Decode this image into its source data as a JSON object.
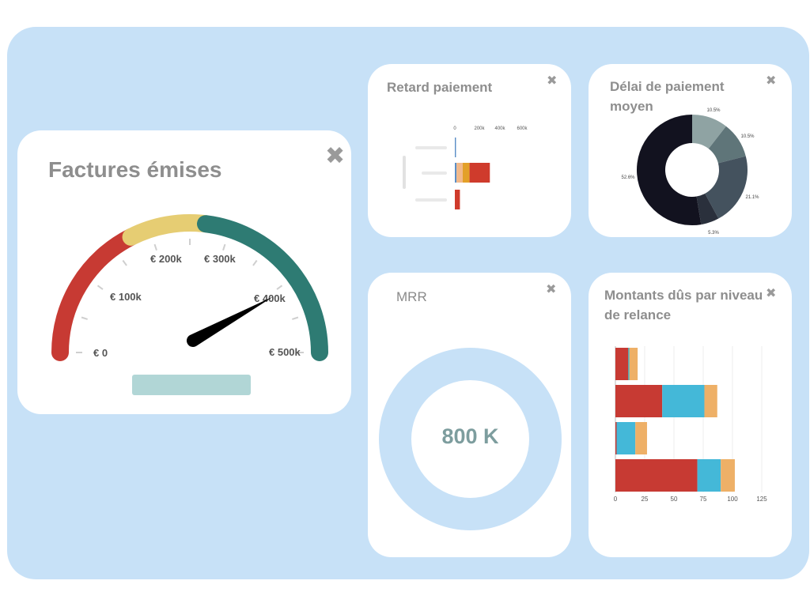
{
  "colors": {
    "board": "#c7e1f7",
    "card": "#ffffff",
    "title": "#8e8e8e",
    "gauge_red": "#c73a33",
    "gauge_yellow": "#e6cd73",
    "gauge_teal": "#2e7b73",
    "mrr_ring": "#c7e1f7",
    "mrr_value": "#7d9d9e"
  },
  "factures": {
    "title": "Factures émises",
    "close_icon": "close-icon",
    "gauge_labels": [
      "€ 0",
      "€ 100k",
      "€ 200k",
      "€ 300k",
      "€ 400k",
      "€ 500k"
    ],
    "gauge_min": 0,
    "gauge_max": 500,
    "needle_value": 420
  },
  "retard": {
    "title": "Retard paiement",
    "close_icon": "close-icon"
  },
  "delai": {
    "title_line1": "Délai de paiement",
    "title_line2": "moyen",
    "close_icon": "close-icon"
  },
  "mrr": {
    "title": "MRR",
    "value": "800 K",
    "close_icon": "close-icon"
  },
  "montants": {
    "title_line1": "Montants dûs par niveau",
    "title_line2": "de relance",
    "close_icon": "close-icon"
  },
  "chart_data": [
    {
      "type": "bar",
      "orientation": "horizontal",
      "stacked": true,
      "x_ticks": [
        "0",
        "200k",
        "400k",
        "600k"
      ],
      "xlim": [
        0,
        700
      ],
      "series_colors": [
        "#5b8ec6",
        "#f2b98a",
        "#e3a028",
        "#cf3b2c"
      ],
      "rows": [
        [
          10,
          0,
          0,
          0
        ],
        [
          15,
          55,
          60,
          180
        ],
        [
          0,
          0,
          0,
          45
        ]
      ]
    },
    {
      "type": "pie",
      "donut": true,
      "labels": [
        "10.5%",
        "10.5%",
        "21.1%",
        "5.3%",
        "52.6%"
      ],
      "values": [
        10.5,
        10.5,
        21.1,
        5.3,
        52.6
      ],
      "colors": [
        "#8fa3a3",
        "#5f7579",
        "#44525e",
        "#2a303c",
        "#12121f"
      ]
    },
    {
      "type": "bar",
      "orientation": "horizontal",
      "stacked": true,
      "x_ticks": [
        "0",
        "25",
        "50",
        "75",
        "100",
        "125"
      ],
      "xlim": [
        0,
        125
      ],
      "grid": true,
      "series_colors": [
        "#c73a33",
        "#39aab5",
        "#44b8d8",
        "#eeb067"
      ],
      "rows": [
        [
          11,
          1,
          0,
          7
        ],
        [
          40,
          0,
          36,
          11
        ],
        [
          1,
          0,
          16,
          10
        ],
        [
          70,
          0,
          20,
          12
        ]
      ]
    }
  ]
}
